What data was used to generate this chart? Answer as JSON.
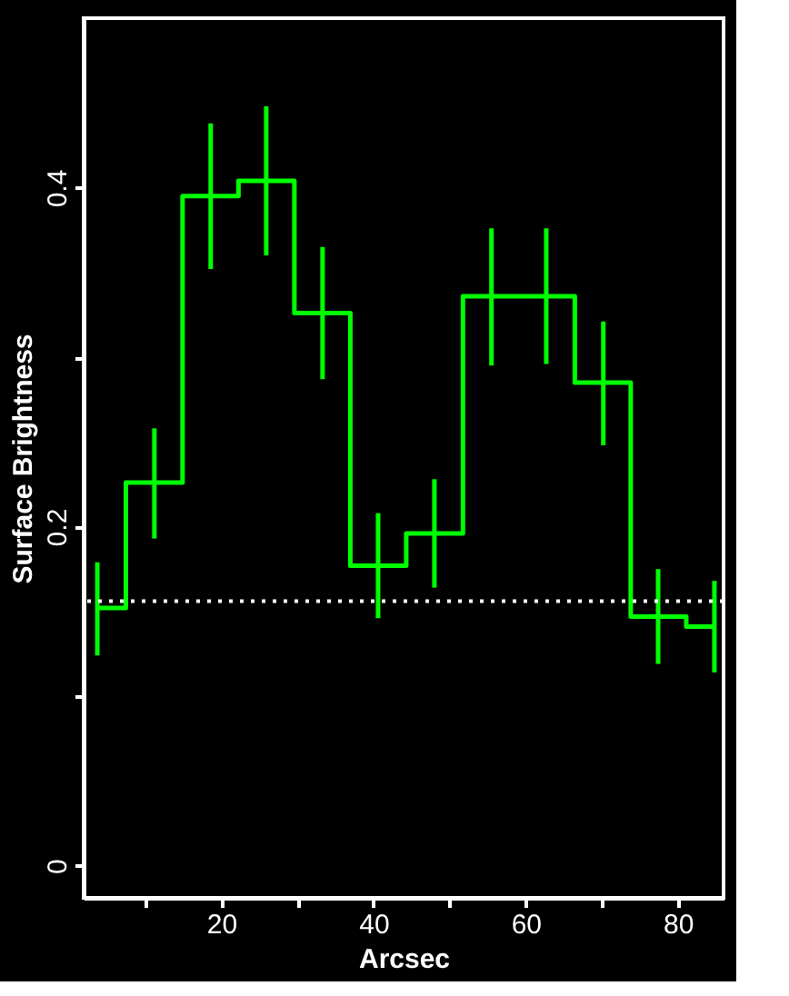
{
  "chart_data": {
    "type": "step",
    "xlabel": "Arcsec",
    "ylabel": "Surface Brightness",
    "x": [
      3.7,
      11.2,
      18.6,
      25.9,
      33.3,
      40.6,
      48.0,
      55.5,
      62.7,
      70.2,
      77.4,
      84.8
    ],
    "series": [
      {
        "color": "#00ff00",
        "values": [
          0.152,
          0.226,
          0.395,
          0.404,
          0.326,
          0.177,
          0.196,
          0.336,
          0.336,
          0.285,
          0.147,
          0.141
        ],
        "errors": [
          [
            0.124,
            0.179
          ],
          [
            0.193,
            0.258
          ],
          [
            0.352,
            0.438
          ],
          [
            0.36,
            0.448
          ],
          [
            0.287,
            0.365
          ],
          [
            0.146,
            0.208
          ],
          [
            0.164,
            0.228
          ],
          [
            0.295,
            0.376
          ],
          [
            0.296,
            0.376
          ],
          [
            0.248,
            0.321
          ],
          [
            0.119,
            0.175
          ],
          [
            0.114,
            0.168
          ]
        ]
      }
    ],
    "xlim": [
      1.9,
      86
    ],
    "xticks": [
      {
        "value": 10,
        "label": null
      },
      20,
      {
        "value": 30,
        "label": null
      },
      40,
      {
        "value": 50,
        "label": null
      },
      60,
      {
        "value": 70,
        "label": null
      },
      80
    ],
    "ylim": [
      -0.019,
      0.5
    ],
    "yticks": [
      0,
      {
        "value": 0.1,
        "label": null
      },
      0.2,
      {
        "value": 0.3,
        "label": null
      },
      0.4
    ],
    "ref_lines": [
      {
        "axis": "y",
        "value": 0.156,
        "color": "#ffffff",
        "line_style": "dotted"
      }
    ],
    "grid": false
  }
}
